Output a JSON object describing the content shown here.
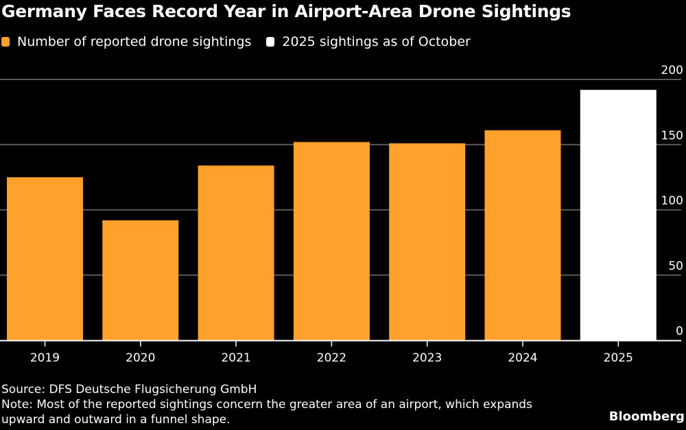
{
  "chart_data": {
    "type": "bar",
    "title": "Germany Faces Record Year in Airport-Area Drone Sightings",
    "categories": [
      "2019",
      "2020",
      "2021",
      "2022",
      "2023",
      "2024",
      "2025"
    ],
    "values": [
      125,
      92,
      134,
      152,
      151,
      161,
      192
    ],
    "series": [
      {
        "name": "Number of reported drone sightings",
        "color": "#FFA12A",
        "categories": [
          "2019",
          "2020",
          "2021",
          "2022",
          "2023",
          "2024"
        ]
      },
      {
        "name": "2025 sightings as of October",
        "color": "#FFFFFF",
        "categories": [
          "2025"
        ]
      }
    ],
    "xlabel": "",
    "ylabel": "",
    "ylim": [
      0,
      200
    ],
    "yticks": [
      0,
      50,
      100,
      150,
      200
    ],
    "yaxis_side": "right",
    "grid": true,
    "legend_position": "top-left"
  },
  "legend": [
    {
      "label": "Number of reported drone sightings",
      "color": "#FFA12A"
    },
    {
      "label": "2025 sightings as of October",
      "color": "#FFFFFF"
    }
  ],
  "footer": {
    "source": "Source: DFS Deutsche Flugsicherung GmbH",
    "note_line1": "Note: Most of the reported sightings concern the greater area of an airport, which expands",
    "note_line2": "upward and outward in a funnel shape.",
    "brand": "Bloomberg"
  }
}
